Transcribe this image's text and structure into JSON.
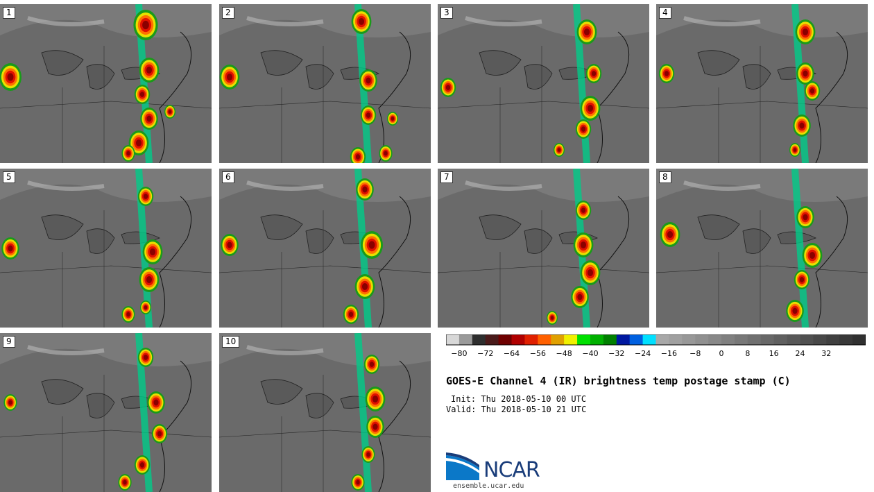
{
  "panels": [
    {
      "label": "1"
    },
    {
      "label": "2"
    },
    {
      "label": "3"
    },
    {
      "label": "4"
    },
    {
      "label": "5"
    },
    {
      "label": "6"
    },
    {
      "label": "7"
    },
    {
      "label": "8"
    },
    {
      "label": "9"
    },
    {
      "label": "10"
    }
  ],
  "colorbar": {
    "colors": [
      "#d8d8d8",
      "#9a9a9a",
      "#2e2e2e",
      "#4a1a1a",
      "#6e0000",
      "#b00000",
      "#e02000",
      "#ff6000",
      "#e0a000",
      "#f0f000",
      "#00e000",
      "#00b000",
      "#008000",
      "#0018a0",
      "#0060e0",
      "#00e0ff",
      "#a8a8a8",
      "#a0a0a0",
      "#989898",
      "#909090",
      "#888888",
      "#808080",
      "#787878",
      "#707070",
      "#686868",
      "#606060",
      "#585858",
      "#505050",
      "#484848",
      "#404040",
      "#383838",
      "#303030"
    ],
    "ticks": [
      "−80",
      "−72",
      "−64",
      "−56",
      "−48",
      "−40",
      "−32",
      "−24",
      "−16",
      "−8",
      "0",
      "8",
      "16",
      "24",
      "32"
    ]
  },
  "title": "GOES-E Channel 4 (IR) brightness temp postage stamp (C)",
  "init": "Init: Thu 2018-05-10 00 UTC",
  "valid": "Valid: Thu 2018-05-10 21 UTC",
  "logo": {
    "text": "NCAR",
    "url": "ensemble.ucar.edu"
  }
}
